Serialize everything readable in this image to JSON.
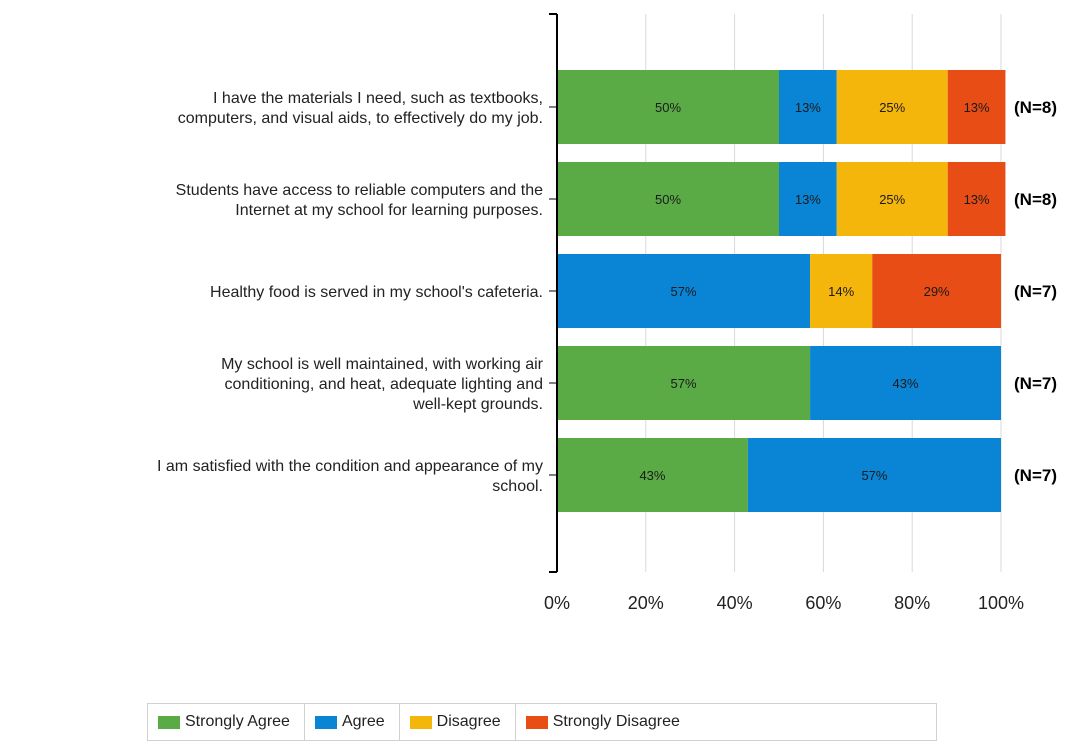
{
  "chart_data": {
    "type": "bar",
    "orientation": "horizontal",
    "stacked": "percent",
    "categories": [
      [
        "I have the materials I need, such as textbooks,",
        "computers, and visual aids, to effectively do my job."
      ],
      [
        "Students have access to reliable computers and the",
        "Internet at my school for learning purposes."
      ],
      [
        "Healthy food is served in my school's cafeteria."
      ],
      [
        "My school is well maintained, with working air",
        "conditioning, and heat, adequate lighting and",
        "well-kept grounds."
      ],
      [
        "I am satisfied with the condition and appearance of my",
        "school."
      ]
    ],
    "n_labels": [
      "(N=8)",
      "(N=8)",
      "(N=7)",
      "(N=7)",
      "(N=7)"
    ],
    "series": [
      {
        "name": "Strongly Agree",
        "color": "#5aab46",
        "values": [
          50,
          50,
          0,
          57,
          43
        ],
        "labels": [
          "50%",
          "50%",
          "",
          "57%",
          "43%"
        ]
      },
      {
        "name": "Agree",
        "color": "#0a84d4",
        "values": [
          13,
          13,
          57,
          43,
          57
        ],
        "labels": [
          "13%",
          "13%",
          "57%",
          "43%",
          "57%"
        ]
      },
      {
        "name": "Disagree",
        "color": "#f5b60c",
        "values": [
          25,
          25,
          14,
          0,
          0
        ],
        "labels": [
          "25%",
          "25%",
          "14%",
          "",
          ""
        ]
      },
      {
        "name": "Strongly Disagree",
        "color": "#e84d16",
        "values": [
          13,
          13,
          29,
          0,
          0
        ],
        "labels": [
          "13%",
          "13%",
          "29%",
          "",
          ""
        ]
      }
    ],
    "xlim": [
      0,
      100
    ],
    "xticks": [
      "0%",
      "20%",
      "40%",
      "60%",
      "80%",
      "100%"
    ],
    "grid": true,
    "legend_position": "bottom"
  }
}
